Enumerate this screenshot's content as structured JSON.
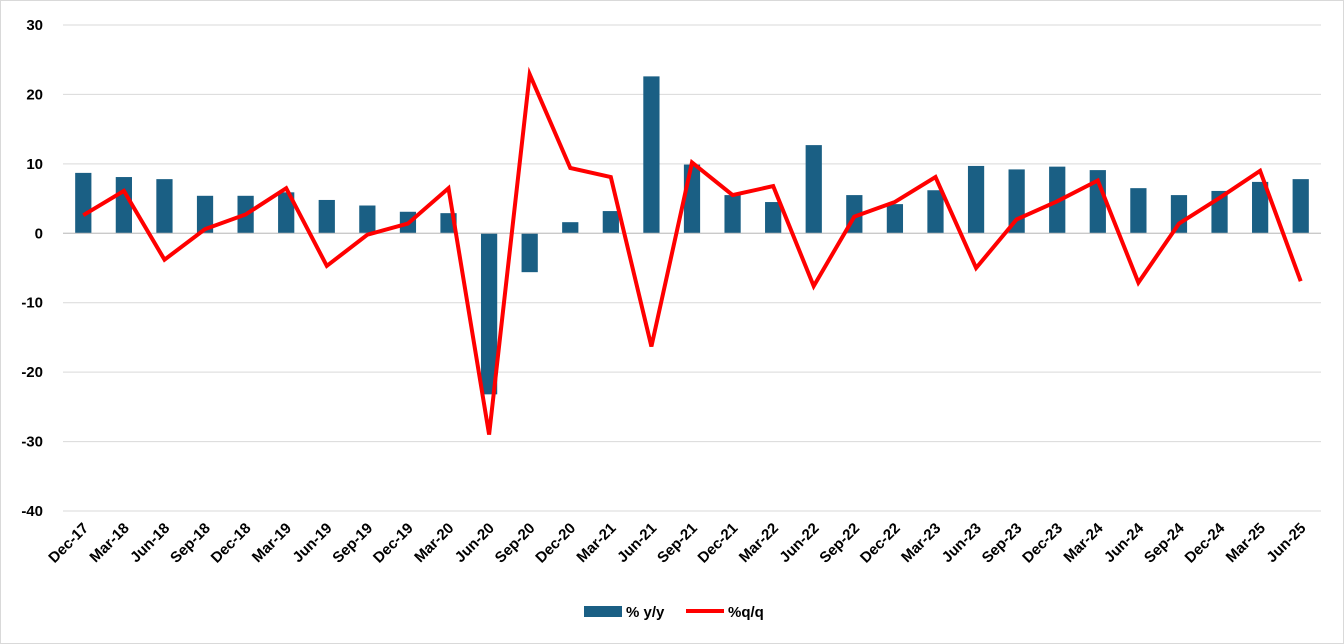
{
  "chart_data": {
    "type": "bar",
    "categories": [
      "Dec-17",
      "Mar-18",
      "Jun-18",
      "Sep-18",
      "Dec-18",
      "Mar-19",
      "Jun-19",
      "Sep-19",
      "Dec-19",
      "Mar-20",
      "Jun-20",
      "Sep-20",
      "Dec-20",
      "Mar-21",
      "Jun-21",
      "Sep-21",
      "Dec-21",
      "Mar-22",
      "Jun-22",
      "Sep-22",
      "Dec-22",
      "Mar-23",
      "Jun-23",
      "Sep-23",
      "Dec-23",
      "Mar-24",
      "Jun-24",
      "Sep-24",
      "Dec-24",
      "Mar-25",
      "Jun-25"
    ],
    "series": [
      {
        "name": "% y/y",
        "type": "bar",
        "color": "#1a5f84",
        "values": [
          8.7,
          8.1,
          7.8,
          5.4,
          5.4,
          5.9,
          4.8,
          4.0,
          3.1,
          2.9,
          -23.2,
          -5.6,
          1.6,
          3.2,
          22.6,
          9.9,
          5.5,
          4.5,
          12.7,
          5.5,
          4.2,
          6.2,
          9.7,
          9.2,
          9.6,
          9.1,
          6.5,
          5.5,
          6.1,
          7.4,
          7.8
        ]
      },
      {
        "name": "%q/q",
        "type": "line",
        "color": "#ff0000",
        "values": [
          2.6,
          6.1,
          -3.8,
          0.6,
          2.7,
          6.5,
          -4.7,
          -0.2,
          1.4,
          6.5,
          -29.0,
          22.9,
          9.4,
          8.1,
          -16.3,
          10.2,
          5.5,
          6.8,
          -7.6,
          2.4,
          4.5,
          8.1,
          -5.0,
          2.0,
          4.6,
          7.6,
          -7.1,
          1.4,
          5.1,
          9.0,
          -6.9
        ]
      }
    ],
    "yticks": [
      "30",
      "20",
      "10",
      "0",
      "-10",
      "-20",
      "-30",
      "-40"
    ],
    "ylim": [
      -40,
      30
    ],
    "grid": true,
    "legend": "bottom-center"
  }
}
